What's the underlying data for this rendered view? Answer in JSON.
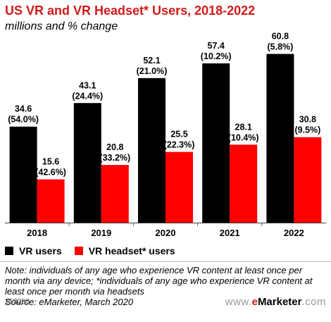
{
  "chart_data": {
    "type": "bar",
    "title": "US VR and VR Headset* Users, 2018-2022",
    "subtitle": "millions and % change",
    "categories": [
      "2018",
      "2019",
      "2020",
      "2021",
      "2022"
    ],
    "series": [
      {
        "name": "VR users",
        "color": "#000000",
        "values": [
          34.6,
          43.1,
          52.1,
          57.4,
          60.8
        ],
        "value_labels": [
          "34.6",
          "43.1",
          "52.1",
          "57.4",
          "60.8"
        ],
        "change_labels": [
          "(54.0%)",
          "(24.4%)",
          "(21.0%)",
          "(10.2%)",
          "(5.8%)"
        ]
      },
      {
        "name": "VR headset* users",
        "color": "#ff0000",
        "values": [
          15.6,
          20.8,
          25.5,
          28.1,
          30.8
        ],
        "value_labels": [
          "15.6",
          "20.8",
          "25.5",
          "28.1",
          "30.8"
        ],
        "change_labels": [
          "(42.6%)",
          "(33.2%)",
          "(22.3%)",
          "(10.4%)",
          "(9.5%)"
        ]
      }
    ],
    "xlabel": "",
    "ylabel": "",
    "ylim": [
      0,
      65
    ],
    "grid": false,
    "legend_position": "bottom-left"
  },
  "note": "Note: individuals of any age who experience VR content at least once per month via any device; *individuals of any age who experience VR content at least once per month via headsets",
  "source": "Source: eMarketer, March 2020",
  "chart_id": "253283",
  "brand": {
    "dots": "www.",
    "e": "e",
    "rest": "Marketer",
    "suffix": ".com"
  },
  "colors": {
    "title": "#d11a1a",
    "series_1": "#000000",
    "series_2": "#ff0000"
  }
}
